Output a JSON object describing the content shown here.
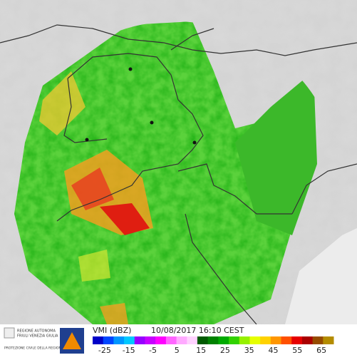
{
  "legend": {
    "title": "VMI (dBZ)",
    "timestamp": "10/08/2017 16:10 CEST",
    "range": [
      -30,
      70
    ],
    "ticks": [
      -25,
      -15,
      -5,
      5,
      15,
      25,
      35,
      45,
      55,
      65
    ],
    "colors": [
      "#0000c8",
      "#0046ff",
      "#0096ff",
      "#00c8ff",
      "#9600ff",
      "#c800ff",
      "#ff00ff",
      "#ff64ff",
      "#ffaaff",
      "#ffd2ff",
      "#005a00",
      "#008200",
      "#00aa00",
      "#32d200",
      "#96f000",
      "#e6ff00",
      "#ffd200",
      "#ff9600",
      "#ff5000",
      "#e60000",
      "#aa0000",
      "#964b00",
      "#b48c00"
    ]
  },
  "logo": {
    "line1": "REGIONE AUTONOMA",
    "line2": "FRIULI VENEZIA GIULIA",
    "line3": "PROTEZIONE CIVILE DELLA REGIONE"
  }
}
